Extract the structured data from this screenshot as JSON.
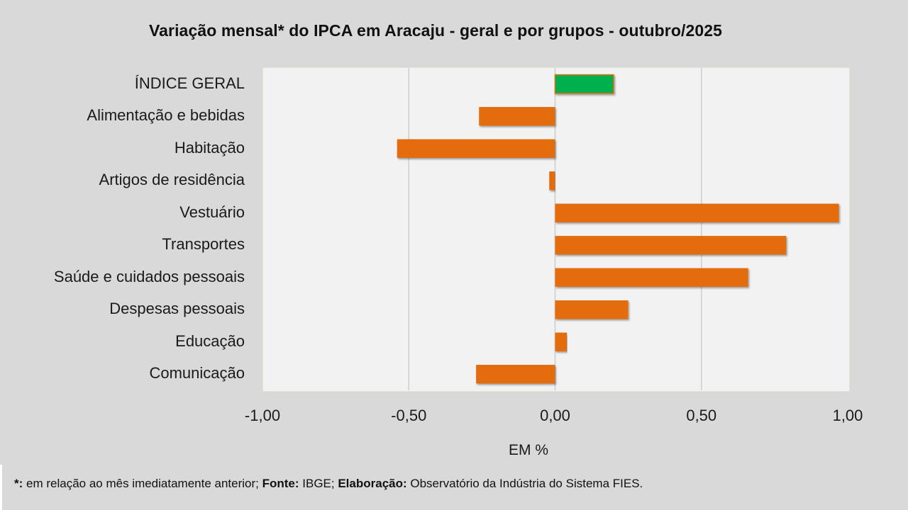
{
  "chart_data": {
    "type": "bar",
    "orientation": "horizontal",
    "title": "Variação  mensal*  do IPCA em Aracaju  - geral e por grupos  - outubro/2025",
    "xlabel": "EM %",
    "ylabel": "",
    "xlim": [
      -1.0,
      1.0
    ],
    "xticks": [
      -1.0,
      -0.5,
      0.0,
      0.5,
      1.0
    ],
    "xtick_labels": [
      "-1,00",
      "-0,50",
      "0,00",
      "0,50",
      "1,00"
    ],
    "grid": true,
    "legend": "none",
    "categories": [
      "ÍNDICE GERAL",
      "Alimentação e bebidas",
      "Habitação",
      "Artigos de residência",
      "Vestuário",
      "Transportes",
      "Saúde e cuidados pessoais",
      "Despesas pessoais",
      "Educação",
      "Comunicação"
    ],
    "values": [
      0.2,
      -0.26,
      -0.54,
      -0.02,
      0.97,
      0.79,
      0.66,
      0.25,
      0.04,
      -0.27
    ],
    "colors": {
      "highlight": "#00b050",
      "default": "#e36c0a",
      "highlight_border": "#e36c0a"
    }
  },
  "footnote": {
    "star_label": "*:",
    "star_text": " em relação ao mês imediatamente  anterior; ",
    "source_label": "Fonte:",
    "source_text": " IBGE; ",
    "credit_label": "Elaboração:",
    "credit_text": " Observatório da Indústria do Sistema FIES."
  }
}
